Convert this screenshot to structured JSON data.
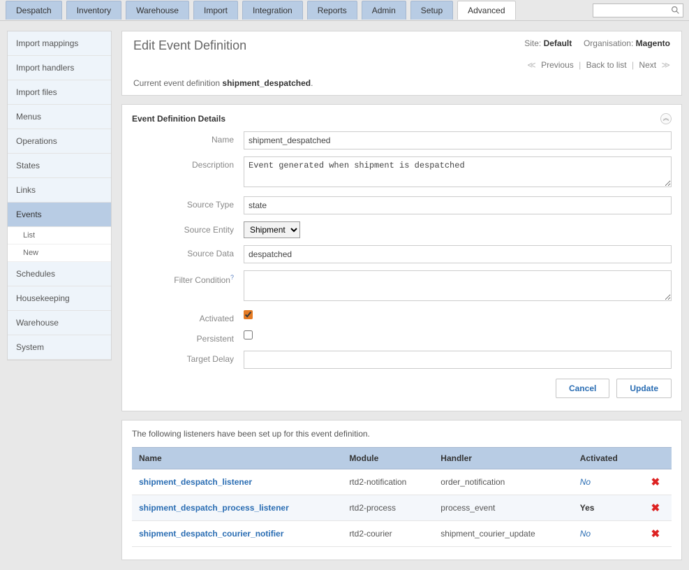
{
  "topnav": {
    "tabs": [
      "Despatch",
      "Inventory",
      "Warehouse",
      "Import",
      "Integration",
      "Reports",
      "Admin",
      "Setup",
      "Advanced"
    ],
    "active": "Advanced"
  },
  "sidebar": {
    "items": [
      {
        "label": "Import mappings"
      },
      {
        "label": "Import handlers"
      },
      {
        "label": "Import files"
      },
      {
        "label": "Menus"
      },
      {
        "label": "Operations"
      },
      {
        "label": "States"
      },
      {
        "label": "Links"
      },
      {
        "label": "Events",
        "active": true,
        "sub": [
          {
            "label": "List"
          },
          {
            "label": "New"
          }
        ]
      },
      {
        "label": "Schedules"
      },
      {
        "label": "Housekeeping"
      },
      {
        "label": "Warehouse"
      },
      {
        "label": "System"
      }
    ]
  },
  "header": {
    "title": "Edit Event Definition",
    "site_label": "Site:",
    "site_value": "Default",
    "org_label": "Organisation:",
    "org_value": "Magento",
    "prev": "Previous",
    "backlist": "Back to list",
    "next": "Next",
    "current_prefix": "Current event definition ",
    "current_name": "shipment_despatched",
    "current_suffix": "."
  },
  "panel": {
    "title": "Event Definition Details",
    "labels": {
      "name": "Name",
      "description": "Description",
      "source_type": "Source Type",
      "source_entity": "Source Entity",
      "source_data": "Source Data",
      "filter": "Filter Condition",
      "activated": "Activated",
      "persistent": "Persistent",
      "target_delay": "Target Delay"
    },
    "values": {
      "name": "shipment_despatched",
      "description": "Event generated when shipment is despatched",
      "source_type": "state",
      "source_entity": "Shipment",
      "source_data": "despatched",
      "filter": "",
      "activated": true,
      "persistent": false,
      "target_delay": ""
    },
    "buttons": {
      "cancel": "Cancel",
      "update": "Update"
    }
  },
  "listeners": {
    "intro": "The following listeners have been set up for this event definition.",
    "columns": [
      "Name",
      "Module",
      "Handler",
      "Activated",
      ""
    ],
    "rows": [
      {
        "name": "shipment_despatch_listener",
        "module": "rtd2-notification",
        "handler": "order_notification",
        "activated": "No"
      },
      {
        "name": "shipment_despatch_process_listener",
        "module": "rtd2-process",
        "handler": "process_event",
        "activated": "Yes"
      },
      {
        "name": "shipment_despatch_courier_notifier",
        "module": "rtd2-courier",
        "handler": "shipment_courier_update",
        "activated": "No"
      }
    ]
  }
}
